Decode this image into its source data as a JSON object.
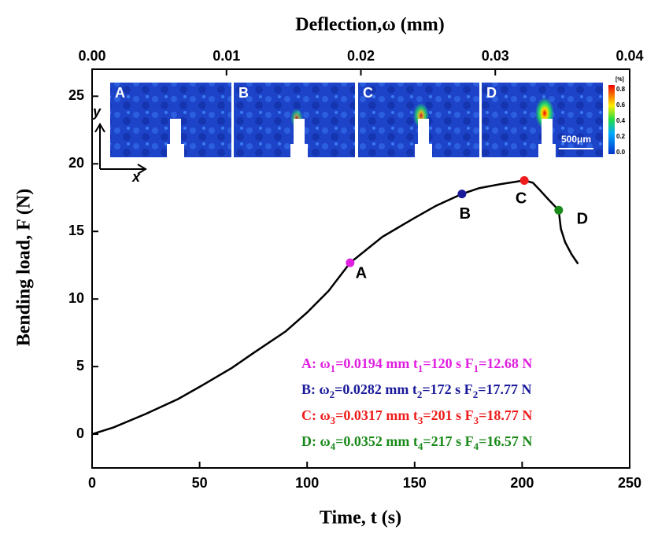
{
  "chart_data": {
    "type": "line",
    "xlabel": "Time, t (s)",
    "ylabel": "Bending load, F (N)",
    "x2label": "Deflection,ω (mm)",
    "xlim": [
      0,
      250
    ],
    "xticks": [
      0,
      50,
      100,
      150,
      200,
      250
    ],
    "x2lim": [
      0,
      0.04
    ],
    "x2ticks": [
      {
        "value": 0,
        "label": "0.00"
      },
      0.01,
      0.02,
      0.03,
      0.04
    ],
    "ylim": [
      -2.5,
      27
    ],
    "yticks": [
      0,
      5,
      10,
      15,
      20,
      25
    ],
    "series": [
      {
        "color": "#000000",
        "x": [
          0,
          10,
          25,
          40,
          50,
          65,
          75,
          90,
          100,
          110,
          120,
          135,
          150,
          160,
          172,
          180,
          190,
          201,
          205,
          208,
          212,
          217,
          218,
          220,
          223,
          226
        ],
        "values": [
          0,
          0.5,
          1.5,
          2.6,
          3.5,
          4.9,
          6,
          7.6,
          9,
          10.6,
          12.68,
          14.6,
          16,
          16.9,
          17.77,
          18.2,
          18.5,
          18.77,
          18.6,
          18.1,
          17.4,
          16.57,
          15.2,
          14.2,
          13.3,
          12.6
        ]
      }
    ],
    "markers": {
      "labels": [
        "A",
        "B",
        "C",
        "D"
      ],
      "x": [
        120,
        172,
        201,
        217
      ],
      "values": [
        12.68,
        17.77,
        18.77,
        16.57
      ],
      "colors": [
        "#e020e0",
        "#1a1a9a",
        "#ee1c1c",
        "#1a8a1a"
      ]
    },
    "annotations": [
      [
        "A: ω",
        "1",
        "=0.0194 mm  t",
        "1",
        "=120 s  F",
        "1",
        "=12.68 N"
      ],
      [
        "B: ω",
        "2",
        "=0.0282 mm  t",
        "2",
        "=172 s  F",
        "2",
        "=17.77 N"
      ],
      [
        "C: ω",
        "3",
        "=0.0317 mm  t",
        "3",
        "=201 s  F",
        "3",
        "=18.77 N"
      ],
      [
        "D: ω",
        "4",
        "=0.0352 mm  t",
        "4",
        "=217 s  F",
        "4",
        "=16.57 N"
      ]
    ],
    "inset": {
      "panels": [
        "A",
        "B",
        "C",
        "D"
      ],
      "colorbar_unit": "[%]",
      "colorbar_ticks": [
        "0.0",
        "0.2",
        "0.4",
        "0.6",
        "0.8"
      ],
      "scale_bar": "500μm",
      "axis_y": "y",
      "axis_x": "x"
    }
  }
}
